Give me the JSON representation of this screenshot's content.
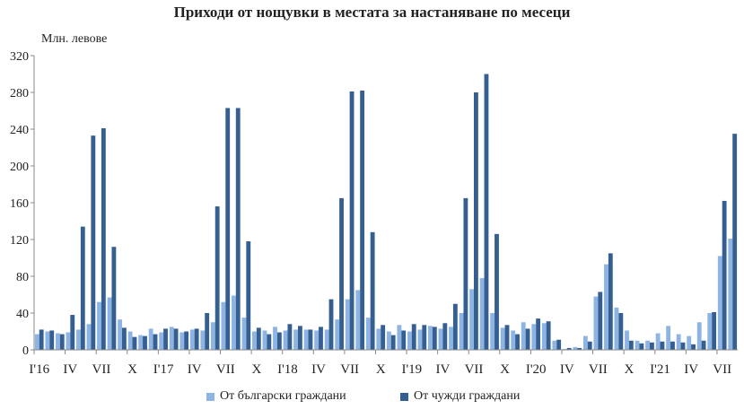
{
  "chart_data": {
    "type": "bar",
    "title": "Приходи от нощувки в местата за настаняване по месеци",
    "ylabel": "Млн. левове",
    "xlabel": "",
    "ylim": [
      0,
      320
    ],
    "yticks": [
      0,
      40,
      80,
      120,
      160,
      200,
      240,
      280,
      320
    ],
    "grid": false,
    "legend_position": "bottom",
    "x_tick_labels": [
      "I'16",
      "IV",
      "VII",
      "X",
      "I'17",
      "IV",
      "VII",
      "X",
      "I'18",
      "IV",
      "VII",
      "X",
      "I'19",
      "IV",
      "VII",
      "X",
      "I'20",
      "IV",
      "VII",
      "X",
      "I'21",
      "IV",
      "VII"
    ],
    "categories": [
      "2016-01",
      "2016-02",
      "2016-03",
      "2016-04",
      "2016-05",
      "2016-06",
      "2016-07",
      "2016-08",
      "2016-09",
      "2016-10",
      "2016-11",
      "2016-12",
      "2017-01",
      "2017-02",
      "2017-03",
      "2017-04",
      "2017-05",
      "2017-06",
      "2017-07",
      "2017-08",
      "2017-09",
      "2017-10",
      "2017-11",
      "2017-12",
      "2018-01",
      "2018-02",
      "2018-03",
      "2018-04",
      "2018-05",
      "2018-06",
      "2018-07",
      "2018-08",
      "2018-09",
      "2018-10",
      "2018-11",
      "2018-12",
      "2019-01",
      "2019-02",
      "2019-03",
      "2019-04",
      "2019-05",
      "2019-06",
      "2019-07",
      "2019-08",
      "2019-09",
      "2019-10",
      "2019-11",
      "2019-12",
      "2020-01",
      "2020-02",
      "2020-03",
      "2020-04",
      "2020-05",
      "2020-06",
      "2020-07",
      "2020-08",
      "2020-09",
      "2020-10",
      "2020-11",
      "2020-12",
      "2021-01",
      "2021-02",
      "2021-03",
      "2021-04",
      "2021-05",
      "2021-06",
      "2021-07",
      "2021-08"
    ],
    "series": [
      {
        "name": "От български граждани",
        "color": "#8db4e2",
        "values": [
          17,
          20,
          18,
          19,
          22,
          28,
          52,
          57,
          33,
          20,
          16,
          23,
          19,
          25,
          19,
          22,
          21,
          30,
          52,
          59,
          35,
          20,
          21,
          25,
          21,
          22,
          22,
          21,
          22,
          33,
          55,
          65,
          35,
          23,
          20,
          27,
          20,
          22,
          26,
          23,
          25,
          40,
          66,
          78,
          40,
          24,
          21,
          30,
          28,
          29,
          10,
          1,
          3,
          15,
          58,
          93,
          46,
          21,
          10,
          10,
          18,
          26,
          17,
          15,
          30,
          40,
          102,
          121
        ]
      },
      {
        "name": "От чужди граждани",
        "color": "#365f91",
        "values": [
          22,
          21,
          17,
          38,
          134,
          233,
          241,
          112,
          24,
          14,
          15,
          17,
          23,
          23,
          20,
          23,
          40,
          156,
          263,
          263,
          118,
          24,
          17,
          19,
          28,
          26,
          22,
          25,
          55,
          165,
          281,
          282,
          128,
          27,
          16,
          21,
          28,
          27,
          25,
          29,
          50,
          165,
          280,
          300,
          126,
          27,
          17,
          23,
          34,
          31,
          11,
          2,
          2,
          9,
          63,
          105,
          40,
          10,
          7,
          8,
          9,
          9,
          8,
          6,
          10,
          41,
          162,
          235
        ]
      }
    ]
  }
}
